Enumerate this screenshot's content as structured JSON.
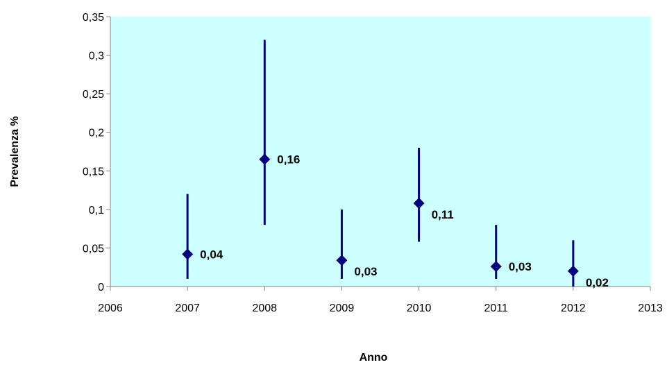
{
  "chart_data": {
    "type": "scatter",
    "title": "",
    "xlabel": "Anno",
    "ylabel": "Prevalenza %",
    "xlim": [
      2006,
      2013
    ],
    "ylim": [
      0,
      0.35
    ],
    "grid": false,
    "legend": "none",
    "x_ticks": [
      "2006",
      "2007",
      "2008",
      "2009",
      "2010",
      "2011",
      "2012",
      "2013"
    ],
    "y_ticks": [
      "0",
      "0,05",
      "0,1",
      "0,15",
      "0,2",
      "0,25",
      "0,3",
      "0,35"
    ],
    "x_tick_values": [
      2006,
      2007,
      2008,
      2009,
      2010,
      2011,
      2012,
      2013
    ],
    "y_tick_values": [
      0,
      0.05,
      0.1,
      0.15,
      0.2,
      0.25,
      0.3,
      0.35
    ],
    "series": [
      {
        "points": [
          {
            "x": 2007,
            "y": 0.042,
            "low": 0.01,
            "high": 0.12,
            "label": "0,04"
          },
          {
            "x": 2008,
            "y": 0.165,
            "low": 0.08,
            "high": 0.32,
            "label": "0,16"
          },
          {
            "x": 2009,
            "y": 0.034,
            "low": 0.01,
            "high": 0.1,
            "label": "0,03"
          },
          {
            "x": 2010,
            "y": 0.108,
            "low": 0.058,
            "high": 0.18,
            "label": "0,11"
          },
          {
            "x": 2011,
            "y": 0.026,
            "low": 0.01,
            "high": 0.08,
            "label": "0,03"
          },
          {
            "x": 2012,
            "y": 0.02,
            "low": 0.0,
            "high": 0.06,
            "label": "0,02"
          }
        ]
      }
    ],
    "colors": {
      "plot_background": "#ccffff",
      "marker": "#000080",
      "axis": "#808080",
      "text": "#000000"
    }
  }
}
